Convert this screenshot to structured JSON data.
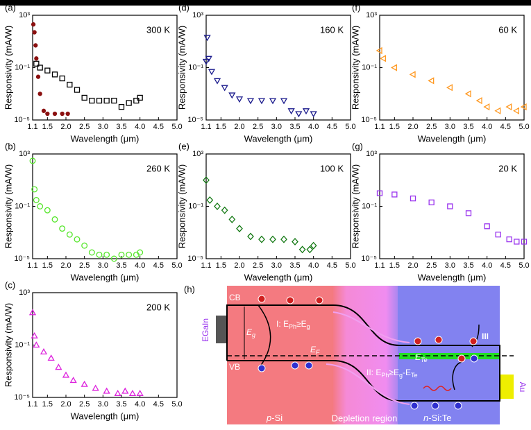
{
  "chart_data": [
    {
      "type": "scatter",
      "panel": "(a)",
      "annotation": "300 K",
      "xlabel": "Wavelength (μm)",
      "ylabel": "Responsivity (mA/W)",
      "log_y": true,
      "xlim": [
        1.1,
        5.0
      ],
      "xticks": [
        1.1,
        1.5,
        {
          "value": 2,
          "label": "2.0"
        },
        2.5,
        {
          "value": 3,
          "label": "3.0"
        },
        3.5,
        {
          "value": 4,
          "label": "4.0"
        },
        4.5,
        {
          "value": 5,
          "label": "5.0"
        }
      ],
      "ylim": [
        1e-05,
        1000
      ],
      "yticks": [
        {
          "value": 1e-05,
          "label": "10⁻⁵"
        },
        {
          "value": 0.1,
          "label": "10⁻¹"
        },
        {
          "value": 1000,
          "label": "10³"
        }
      ],
      "series": [
        {
          "color": "#000000",
          "marker": "square",
          "x": [
            1.2,
            1.3,
            1.5,
            1.7,
            1.9,
            2.1,
            2.3,
            2.5,
            2.7,
            2.9,
            3.1,
            3.3,
            3.5,
            3.7,
            3.9,
            4.0
          ],
          "values": [
            0.2,
            0.1,
            0.06,
            0.03,
            0.015,
            0.005,
            0.002,
            0.0005,
            0.0003,
            0.0003,
            0.0003,
            0.0003,
            0.0001,
            0.0002,
            0.0003,
            0.0005
          ]
        },
        {
          "color": "#8b1010",
          "marker": "dot",
          "x": [
            1.12,
            1.15,
            1.18,
            1.2,
            1.25,
            1.3,
            1.4,
            1.5,
            1.7,
            1.9,
            2.05
          ],
          "values": [
            200,
            50,
            5,
            0.5,
            0.02,
            0.001,
            5e-05,
            3e-05,
            3e-05,
            3e-05,
            3e-05
          ]
        }
      ]
    },
    {
      "type": "scatter",
      "panel": "(b)",
      "annotation": "260 K",
      "xlabel": "Wavelength (μm)",
      "ylabel": "Responsivity (mA/W)",
      "log_y": true,
      "xlim": [
        1.1,
        5.0
      ],
      "xticks": [
        1.1,
        1.5,
        {
          "value": 2,
          "label": "2.0"
        },
        2.5,
        {
          "value": 3,
          "label": "3.0"
        },
        3.5,
        {
          "value": 4,
          "label": "4.0"
        },
        4.5,
        {
          "value": 5,
          "label": "5.0"
        }
      ],
      "ylim": [
        1e-05,
        1000
      ],
      "yticks": [
        {
          "value": 1e-05,
          "label": "10⁻⁵"
        },
        {
          "value": 0.1,
          "label": "10⁻¹"
        },
        {
          "value": 1000,
          "label": "10³"
        }
      ],
      "series": [
        {
          "color": "#55e62a",
          "marker": "circle",
          "x": [
            1.1,
            1.15,
            1.2,
            1.3,
            1.5,
            1.7,
            1.9,
            2.1,
            2.3,
            2.5,
            2.7,
            2.9,
            3.1,
            3.3,
            3.5,
            3.7,
            3.9,
            4.0
          ],
          "values": [
            300,
            2,
            0.3,
            0.1,
            0.05,
            0.01,
            0.002,
            0.0007,
            0.0003,
            0.0001,
            3e-05,
            2e-05,
            2e-05,
            1e-05,
            2e-05,
            2e-05,
            2e-05,
            3e-05
          ]
        }
      ]
    },
    {
      "type": "scatter",
      "panel": "(c)",
      "annotation": "200 K",
      "xlabel": "Wavelength (μm)",
      "ylabel": "Responsivity (mA/W)",
      "log_y": true,
      "xlim": [
        1.1,
        5.0
      ],
      "xticks": [
        1.1,
        1.5,
        {
          "value": 2,
          "label": "2.0"
        },
        2.5,
        {
          "value": 3,
          "label": "3.0"
        },
        3.5,
        {
          "value": 4,
          "label": "4.0"
        },
        4.5,
        {
          "value": 5,
          "label": "5.0"
        }
      ],
      "ylim": [
        1e-05,
        1000
      ],
      "yticks": [
        {
          "value": 1e-05,
          "label": "10⁻⁵"
        },
        {
          "value": 0.1,
          "label": "10⁻¹"
        },
        {
          "value": 1000,
          "label": "10³"
        }
      ],
      "series": [
        {
          "color": "#dd22dd",
          "marker": "triangle-up",
          "x": [
            1.1,
            1.15,
            1.2,
            1.4,
            1.6,
            1.8,
            2.0,
            2.2,
            2.5,
            2.8,
            3.1,
            3.4,
            3.6,
            3.8,
            4.0
          ],
          "values": [
            30,
            0.5,
            0.1,
            0.03,
            0.01,
            0.002,
            0.0005,
            0.0002,
            0.0001,
            5e-05,
            3e-05,
            2e-05,
            3e-05,
            2e-05,
            2e-05
          ]
        }
      ]
    },
    {
      "type": "scatter",
      "panel": "(d)",
      "annotation": "160 K",
      "xlabel": "Wavelength (μm)",
      "ylabel": "Responsivity (mA/W)",
      "log_y": true,
      "xlim": [
        1.1,
        5.0
      ],
      "xticks": [
        1.1,
        1.5,
        {
          "value": 2,
          "label": "2.0"
        },
        2.5,
        {
          "value": 3,
          "label": "3.0"
        },
        3.5,
        {
          "value": 4,
          "label": "4.0"
        },
        4.5,
        {
          "value": 5,
          "label": "5.0"
        }
      ],
      "ylim": [
        1e-05,
        1000
      ],
      "yticks": [
        {
          "value": 1e-05,
          "label": "10⁻⁵"
        },
        {
          "value": 0.1,
          "label": "10⁻¹"
        },
        {
          "value": 1000,
          "label": "10³"
        }
      ],
      "series": [
        {
          "color": "#1a1a8c",
          "marker": "triangle-down",
          "x": [
            1.1,
            1.13,
            1.17,
            1.25,
            1.4,
            1.6,
            1.8,
            2.0,
            2.3,
            2.6,
            2.9,
            3.2,
            3.4,
            3.6,
            3.8,
            4.0
          ],
          "values": [
            0.3,
            20,
            0.5,
            0.05,
            0.01,
            0.003,
            0.0008,
            0.0004,
            0.0003,
            0.0003,
            0.0003,
            0.0003,
            5e-05,
            3e-05,
            5e-05,
            3e-05
          ]
        }
      ]
    },
    {
      "type": "scatter",
      "panel": "(e)",
      "annotation": "100 K",
      "xlabel": "Wavelength (μm)",
      "ylabel": "Responsivity (mA/W)",
      "log_y": true,
      "xlim": [
        1.1,
        5.0
      ],
      "xticks": [
        1.1,
        1.5,
        {
          "value": 2,
          "label": "2.0"
        },
        2.5,
        {
          "value": 3,
          "label": "3.0"
        },
        3.5,
        {
          "value": 4,
          "label": "4.0"
        },
        4.5,
        {
          "value": 5,
          "label": "5.0"
        }
      ],
      "ylim": [
        1e-05,
        1000
      ],
      "yticks": [
        {
          "value": 1e-05,
          "label": "10⁻⁵"
        },
        {
          "value": 0.1,
          "label": "10⁻¹"
        },
        {
          "value": 1000,
          "label": "10³"
        }
      ],
      "series": [
        {
          "color": "#117711",
          "marker": "diamond",
          "x": [
            1.1,
            1.2,
            1.4,
            1.6,
            1.8,
            2.0,
            2.3,
            2.6,
            2.9,
            3.2,
            3.5,
            3.7,
            3.9,
            4.0
          ],
          "values": [
            10,
            0.3,
            0.1,
            0.05,
            0.01,
            0.002,
            0.0005,
            0.0003,
            0.0003,
            0.0003,
            0.0002,
            5e-05,
            5e-05,
            0.0001
          ]
        }
      ]
    },
    {
      "type": "scatter",
      "panel": "(f)",
      "annotation": "60 K",
      "xlabel": "Wavelength (μm)",
      "ylabel": "Responsivity (mA/W)",
      "log_y": true,
      "xlim": [
        1.1,
        5.0
      ],
      "xticks": [
        1.1,
        1.5,
        {
          "value": 2,
          "label": "2.0"
        },
        2.5,
        {
          "value": 3,
          "label": "3.0"
        },
        3.5,
        {
          "value": 4,
          "label": "4.0"
        },
        4.5,
        {
          "value": 5,
          "label": "5.0"
        }
      ],
      "ylim": [
        1e-05,
        1000
      ],
      "yticks": [
        {
          "value": 1e-05,
          "label": "10⁻⁵"
        },
        {
          "value": 0.1,
          "label": "10⁻¹"
        },
        {
          "value": 1000,
          "label": "10³"
        }
      ],
      "series": [
        {
          "color": "#ff9922",
          "marker": "triangle-left",
          "x": [
            1.1,
            1.2,
            1.5,
            2.0,
            2.5,
            3.0,
            3.5,
            3.8,
            4.0,
            4.3,
            4.6,
            4.8,
            5.0
          ],
          "values": [
            2,
            0.5,
            0.1,
            0.03,
            0.01,
            0.003,
            0.001,
            0.0003,
            0.0001,
            5e-05,
            0.0001,
            5e-05,
            0.0001
          ]
        }
      ]
    },
    {
      "type": "scatter",
      "panel": "(g)",
      "annotation": "20 K",
      "xlabel": "Wavelength (μm)",
      "ylabel": "Responsivity (mA/W)",
      "log_y": true,
      "xlim": [
        1.1,
        5.0
      ],
      "xticks": [
        1.1,
        1.5,
        {
          "value": 2,
          "label": "2.0"
        },
        2.5,
        {
          "value": 3,
          "label": "3.0"
        },
        3.5,
        {
          "value": 4,
          "label": "4.0"
        },
        4.5,
        {
          "value": 5,
          "label": "5.0"
        }
      ],
      "ylim": [
        1e-05,
        1000
      ],
      "yticks": [
        {
          "value": 1e-05,
          "label": "10⁻⁵"
        },
        {
          "value": 0.1,
          "label": "10⁻¹"
        },
        {
          "value": 1000,
          "label": "10³"
        }
      ],
      "series": [
        {
          "color": "#9933ee",
          "marker": "square",
          "x": [
            1.1,
            1.5,
            2.0,
            2.5,
            3.0,
            3.5,
            4.0,
            4.3,
            4.6,
            4.8,
            5.0
          ],
          "values": [
            1,
            0.8,
            0.4,
            0.2,
            0.1,
            0.03,
            0.003,
            0.0007,
            0.0003,
            0.0002,
            0.0002
          ]
        }
      ]
    }
  ],
  "diagram": {
    "panel": "(h)",
    "cb": "CB",
    "vb": "VB",
    "left_contact": "EGaIn",
    "right_contact": "Au",
    "eg": [
      "E",
      {
        "sub": "g"
      }
    ],
    "ef": [
      "E",
      {
        "sub": "F"
      }
    ],
    "ete": [
      "E",
      {
        "sub": "Te"
      }
    ],
    "process_1": [
      "I: E",
      {
        "sub": "Ph"
      },
      "≥E",
      {
        "sub": "g"
      }
    ],
    "process_2": [
      "II: E",
      {
        "sub": "Ph"
      },
      "≥E",
      {
        "sub": "g"
      },
      "-E",
      {
        "sub": "Te"
      }
    ],
    "process_3": [
      "III"
    ],
    "region_p": [
      "p",
      "-Si"
    ],
    "region_depletion": "Depletion region",
    "region_n": [
      "n",
      "-Si:Te"
    ]
  }
}
